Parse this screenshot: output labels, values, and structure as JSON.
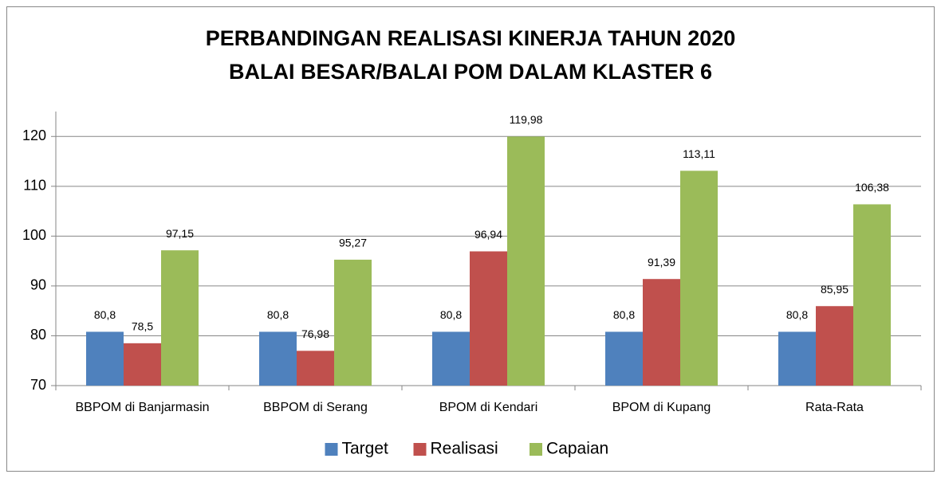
{
  "chart_data": {
    "type": "bar",
    "title": [
      "PERBANDINGAN REALISASI KINERJA TAHUN 2020",
      "BALAI BESAR/BALAI POM DALAM KLASTER 6"
    ],
    "categories": [
      "BBPOM di Banjarmasin",
      "BBPOM di Serang",
      "BPOM di Kendari",
      "BPOM di Kupang",
      "Rata-Rata"
    ],
    "series": [
      {
        "name": "Target",
        "color": "#4f81bd",
        "values": [
          80.8,
          80.8,
          80.8,
          80.8,
          80.8
        ],
        "value_labels": [
          "80,8",
          "80,8",
          "80,8",
          "80,8",
          "80,8"
        ]
      },
      {
        "name": "Realisasi",
        "color": "#c0504d",
        "values": [
          78.5,
          76.98,
          96.94,
          91.39,
          85.95
        ],
        "value_labels": [
          "78,5",
          "76,98",
          "96,94",
          "91,39",
          "85,95"
        ]
      },
      {
        "name": "Capaian",
        "color": "#9bbb59",
        "values": [
          97.15,
          95.27,
          119.98,
          113.11,
          106.38
        ],
        "value_labels": [
          "97,15",
          "95,27",
          "119,98",
          "113,11",
          "106,38"
        ]
      }
    ],
    "ylim": [
      70,
      125
    ],
    "yticks": [
      70,
      80,
      90,
      100,
      110,
      120
    ],
    "grid": true,
    "legend": "bottom"
  }
}
